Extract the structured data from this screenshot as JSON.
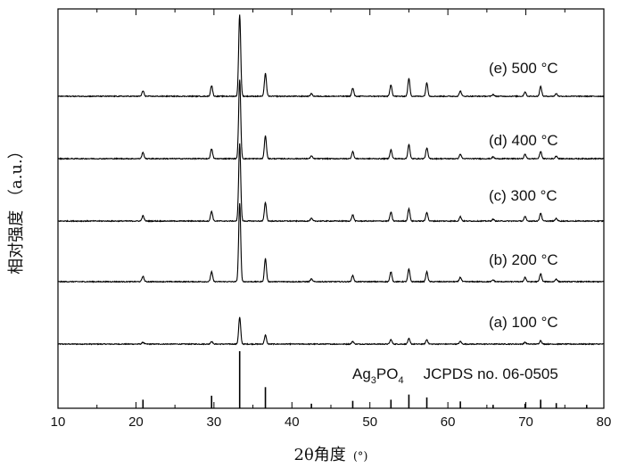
{
  "chart_data": {
    "type": "line",
    "xlabel": "2θ角度",
    "xlabel_unit": "(°)",
    "ylabel": "相对强度 （a.u.）",
    "xlim": [
      10,
      80
    ],
    "x_ticks": [
      10,
      20,
      30,
      40,
      50,
      60,
      70,
      80
    ],
    "grid": false,
    "legend": "none",
    "reference_pattern": {
      "label_chemical": "Ag",
      "label_sub1": "3",
      "label_mid": "PO",
      "label_sub2": "4",
      "label_ref": "JCPDS  no. 06-0505",
      "peaks": [
        {
          "x": 20.9,
          "intensity": 0.15
        },
        {
          "x": 29.7,
          "intensity": 0.22
        },
        {
          "x": 33.3,
          "intensity": 1.0
        },
        {
          "x": 36.6,
          "intensity": 0.37
        },
        {
          "x": 42.5,
          "intensity": 0.08
        },
        {
          "x": 47.8,
          "intensity": 0.13
        },
        {
          "x": 52.7,
          "intensity": 0.15
        },
        {
          "x": 55.0,
          "intensity": 0.24
        },
        {
          "x": 57.3,
          "intensity": 0.19
        },
        {
          "x": 61.6,
          "intensity": 0.12
        },
        {
          "x": 65.8,
          "intensity": 0.06
        },
        {
          "x": 69.9,
          "intensity": 0.08
        },
        {
          "x": 71.9,
          "intensity": 0.15
        },
        {
          "x": 73.9,
          "intensity": 0.09
        },
        {
          "x": 77.8,
          "intensity": 0.06
        }
      ]
    },
    "series": [
      {
        "name": "(a)  100 °C",
        "peaks": [
          {
            "x": 20.9,
            "h": 2
          },
          {
            "x": 29.7,
            "h": 3
          },
          {
            "x": 33.3,
            "h": 30
          },
          {
            "x": 36.6,
            "h": 10
          },
          {
            "x": 47.8,
            "h": 3
          },
          {
            "x": 52.7,
            "h": 5
          },
          {
            "x": 55.0,
            "h": 6
          },
          {
            "x": 57.3,
            "h": 5
          },
          {
            "x": 61.6,
            "h": 3
          },
          {
            "x": 69.9,
            "h": 2
          },
          {
            "x": 71.9,
            "h": 4
          }
        ]
      },
      {
        "name": "(b)  200 °C",
        "peaks": [
          {
            "x": 20.9,
            "h": 6
          },
          {
            "x": 29.7,
            "h": 11
          },
          {
            "x": 33.3,
            "h": 88
          },
          {
            "x": 36.6,
            "h": 26
          },
          {
            "x": 42.5,
            "h": 3
          },
          {
            "x": 47.8,
            "h": 7
          },
          {
            "x": 52.7,
            "h": 11
          },
          {
            "x": 55.0,
            "h": 14
          },
          {
            "x": 57.3,
            "h": 11
          },
          {
            "x": 61.6,
            "h": 5
          },
          {
            "x": 65.8,
            "h": 2
          },
          {
            "x": 69.9,
            "h": 5
          },
          {
            "x": 71.9,
            "h": 9
          },
          {
            "x": 73.9,
            "h": 3
          }
        ]
      },
      {
        "name": "(c)  300 °C",
        "peaks": [
          {
            "x": 20.9,
            "h": 6
          },
          {
            "x": 29.7,
            "h": 11
          },
          {
            "x": 33.3,
            "h": 87
          },
          {
            "x": 36.6,
            "h": 21
          },
          {
            "x": 42.5,
            "h": 3
          },
          {
            "x": 47.8,
            "h": 7
          },
          {
            "x": 52.7,
            "h": 10
          },
          {
            "x": 55.0,
            "h": 14
          },
          {
            "x": 57.3,
            "h": 10
          },
          {
            "x": 61.6,
            "h": 5
          },
          {
            "x": 65.8,
            "h": 2
          },
          {
            "x": 69.9,
            "h": 5
          },
          {
            "x": 71.9,
            "h": 9
          },
          {
            "x": 73.9,
            "h": 3
          }
        ]
      },
      {
        "name": "(d)  400 °C",
        "peaks": [
          {
            "x": 20.9,
            "h": 7
          },
          {
            "x": 29.7,
            "h": 11
          },
          {
            "x": 33.3,
            "h": 89
          },
          {
            "x": 36.6,
            "h": 26
          },
          {
            "x": 42.5,
            "h": 3
          },
          {
            "x": 47.8,
            "h": 8
          },
          {
            "x": 52.7,
            "h": 10
          },
          {
            "x": 55.0,
            "h": 16
          },
          {
            "x": 57.3,
            "h": 12
          },
          {
            "x": 61.6,
            "h": 5
          },
          {
            "x": 65.8,
            "h": 2
          },
          {
            "x": 69.9,
            "h": 5
          },
          {
            "x": 71.9,
            "h": 8
          },
          {
            "x": 73.9,
            "h": 3
          }
        ]
      },
      {
        "name": "(e)  500 °C",
        "peaks": [
          {
            "x": 20.9,
            "h": 6
          },
          {
            "x": 29.7,
            "h": 12
          },
          {
            "x": 33.3,
            "h": 92
          },
          {
            "x": 36.6,
            "h": 26
          },
          {
            "x": 42.5,
            "h": 3
          },
          {
            "x": 47.8,
            "h": 9
          },
          {
            "x": 52.7,
            "h": 13
          },
          {
            "x": 55.0,
            "h": 20
          },
          {
            "x": 57.3,
            "h": 15
          },
          {
            "x": 61.6,
            "h": 6
          },
          {
            "x": 65.8,
            "h": 2
          },
          {
            "x": 69.9,
            "h": 5
          },
          {
            "x": 71.9,
            "h": 11
          },
          {
            "x": 73.9,
            "h": 3
          }
        ]
      }
    ]
  }
}
